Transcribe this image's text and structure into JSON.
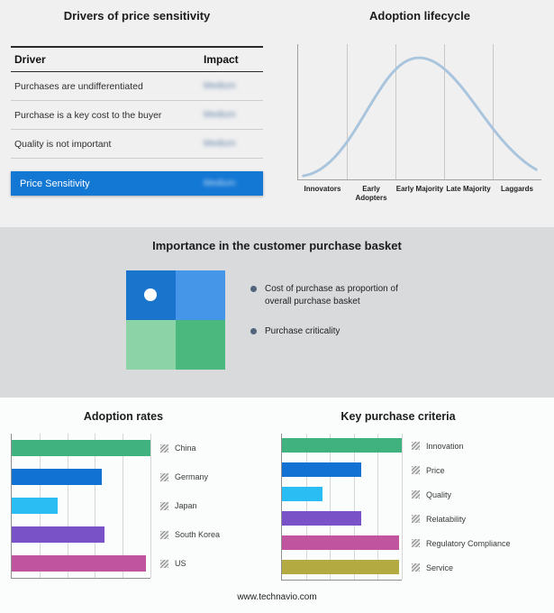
{
  "chart_data": [
    {
      "type": "table",
      "title": "Drivers of price sensitivity",
      "columns": [
        "Driver",
        "Impact"
      ],
      "rows": [
        [
          "Purchases are undifferentiated",
          "Medium"
        ],
        [
          "Purchase is a key cost to the buyer",
          "Medium"
        ],
        [
          "Quality is not important",
          "Medium"
        ],
        [
          "Price Sensitivity",
          "Medium"
        ]
      ],
      "highlight_row_index": 3,
      "highlight_color": "#1377d4",
      "impact_values_blurred": true
    },
    {
      "type": "area",
      "title": "Adoption lifecycle",
      "categories": [
        "Innovators",
        "Early Adopters",
        "Early Majority",
        "Late Majority",
        "Laggards"
      ],
      "curve_shape": "bell",
      "curve_color": "#a9c4dd",
      "grid": true
    },
    {
      "type": "bar",
      "title": "Adoption rates",
      "orientation": "horizontal",
      "categories": [
        "China",
        "Germany",
        "Japan",
        "South Korea",
        "US"
      ],
      "values": [
        100,
        65,
        33,
        67,
        97
      ],
      "colors": [
        "#3fb27f",
        "#1272d4",
        "#29bdf4",
        "#7a52c7",
        "#c0549f"
      ],
      "xlim": [
        0,
        100
      ],
      "grid": true,
      "legend_position": "right"
    },
    {
      "type": "bar",
      "title": "Key purchase criteria",
      "orientation": "horizontal",
      "categories": [
        "Innovation",
        "Price",
        "Quality",
        "Relatability",
        "Regulatory Compliance",
        "Service"
      ],
      "values": [
        100,
        66,
        34,
        66,
        98,
        98
      ],
      "colors": [
        "#3fb27f",
        "#1272d4",
        "#29bdf4",
        "#7a52c7",
        "#c0549f",
        "#b3ab41"
      ],
      "xlim": [
        0,
        100
      ],
      "grid": true,
      "legend_position": "right"
    }
  ],
  "basket": {
    "title": "Importance in the customer purchase basket",
    "legend": [
      "Cost of purchase as proportion of overall purchase basket",
      "Purchase criticality"
    ],
    "quadrant_colors": [
      "#1b74cc",
      "#4596e8",
      "#8cd4a8",
      "#4bb97e"
    ]
  },
  "footer": {
    "url": "www.technavio.com"
  }
}
